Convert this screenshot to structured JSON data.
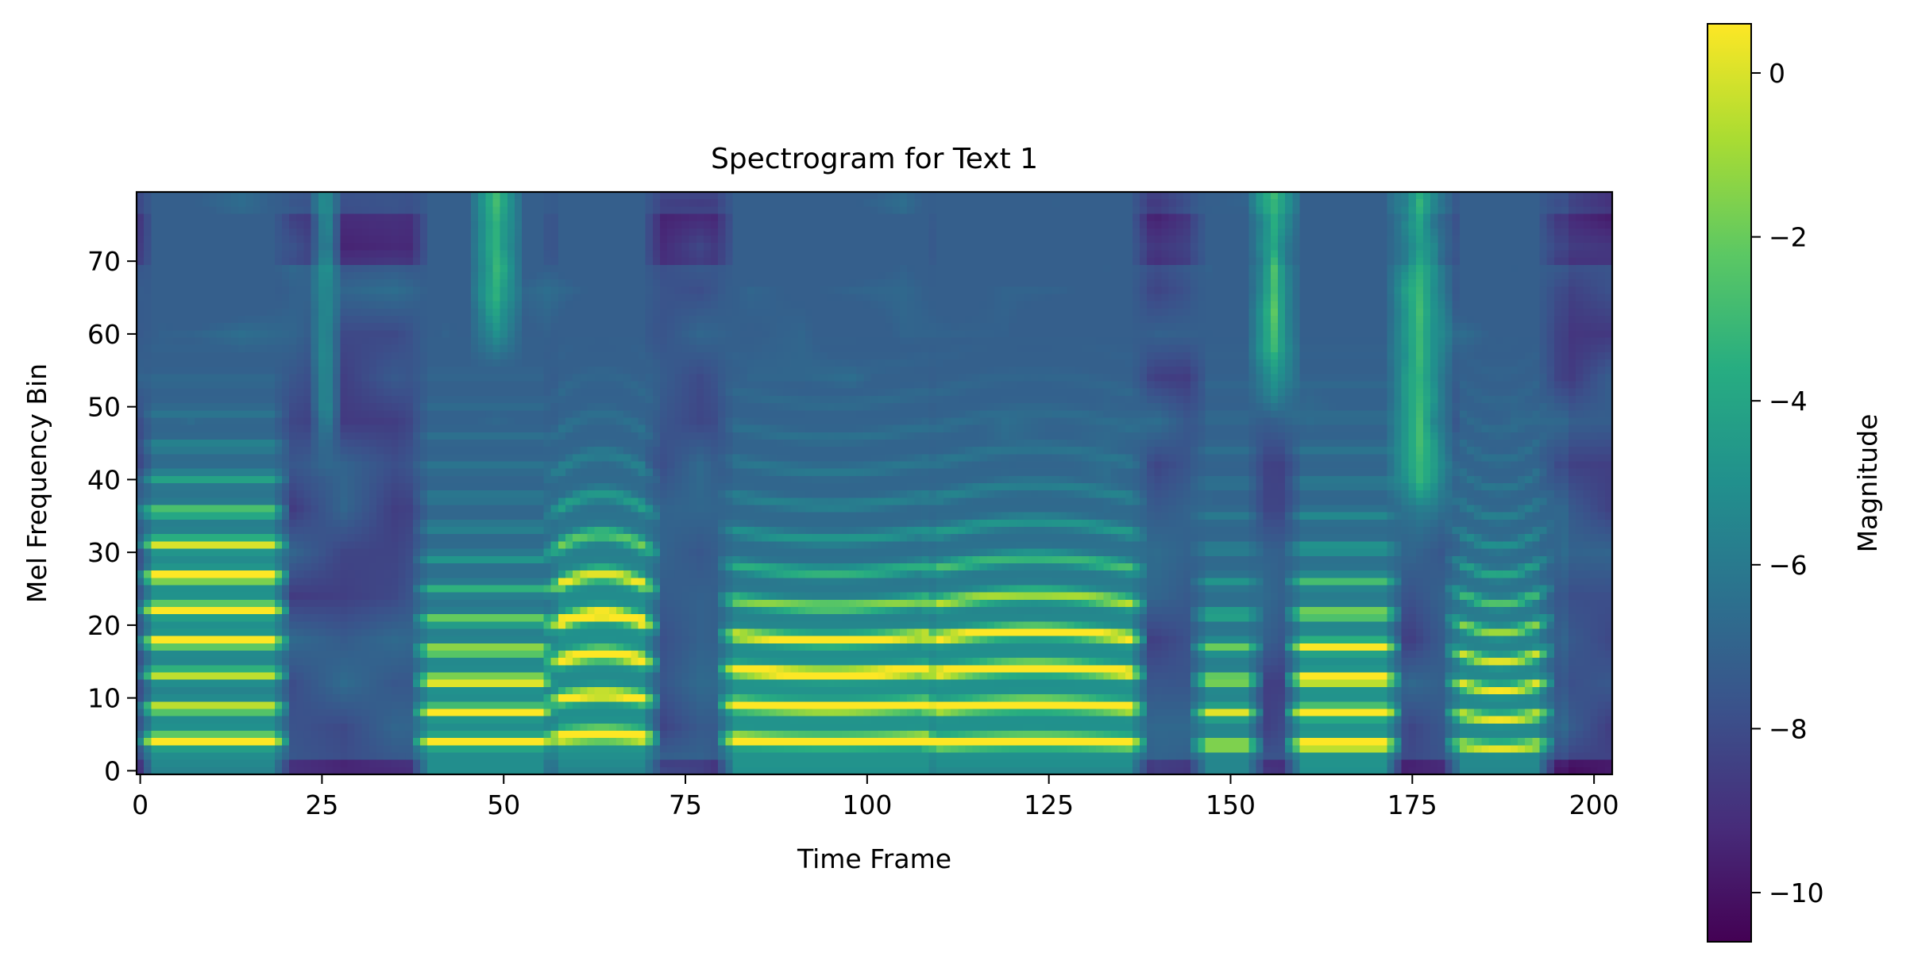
{
  "chart_data": {
    "type": "heatmap",
    "title": "Spectrogram for Text 1",
    "xlabel": "Time Frame",
    "ylabel": "Mel Frequency Bin",
    "xlim": [
      -0.5,
      202.5
    ],
    "ylim": [
      -0.5,
      79.5
    ],
    "xticks": [
      0,
      25,
      50,
      75,
      100,
      125,
      150,
      175,
      200
    ],
    "yticks": [
      0,
      10,
      20,
      30,
      40,
      50,
      60,
      70
    ],
    "grid": false,
    "colormap": "viridis",
    "colorbar": {
      "label": "Magnitude",
      "range": [
        -10.6,
        0.6
      ],
      "ticks": [
        0,
        -2,
        -4,
        -6,
        -8,
        -10
      ],
      "tick_labels": [
        "0",
        "−2",
        "−4",
        "−6",
        "−8",
        "−10"
      ]
    },
    "n_time_frames": 203,
    "n_mel_bins": 80,
    "voiced_segments": [
      {
        "start": 1,
        "end": 19,
        "f0_bin": 4.2,
        "spacing": 4.5,
        "peak": 0.0,
        "formant_bin": 24,
        "slope": 0
      },
      {
        "start": 39,
        "end": 56,
        "f0_bin": 4.0,
        "spacing": 4.2,
        "peak": -1.5,
        "formant_bin": 10,
        "slope": 0
      },
      {
        "start": 57,
        "end": 70,
        "f0_bin": 4.6,
        "spacing": 5.2,
        "peak": -0.5,
        "formant_bin": 20,
        "slope": 0.5
      },
      {
        "start": 81,
        "end": 109,
        "f0_bin": 4.3,
        "spacing": 4.8,
        "peak": -0.6,
        "formant_bin": 12,
        "slope": -0.3
      },
      {
        "start": 109,
        "end": 137,
        "f0_bin": 3.8,
        "spacing": 4.8,
        "peak": -1.0,
        "formant_bin": 15,
        "slope": 0.4
      },
      {
        "start": 146,
        "end": 153,
        "f0_bin": 3.5,
        "spacing": 4.5,
        "peak": -3.0,
        "formant_bin": 8,
        "slope": 0
      },
      {
        "start": 159,
        "end": 172,
        "f0_bin": 3.6,
        "spacing": 4.5,
        "peak": -0.6,
        "formant_bin": 12,
        "slope": 0
      },
      {
        "start": 181,
        "end": 193,
        "f0_bin": 3.6,
        "spacing": 4.2,
        "peak": -2.5,
        "formant_bin": 12,
        "slope": -0.5
      }
    ],
    "broadband_segments": [
      {
        "start": 24,
        "end": 27,
        "level": -4.5,
        "low": 40,
        "high": 80
      },
      {
        "start": 46,
        "end": 52,
        "level": -2.5,
        "low": 55,
        "high": 80
      },
      {
        "start": 153,
        "end": 159,
        "level": -2.0,
        "low": 48,
        "high": 80
      },
      {
        "start": 172,
        "end": 180,
        "level": -2.5,
        "low": 30,
        "high": 80
      }
    ]
  }
}
